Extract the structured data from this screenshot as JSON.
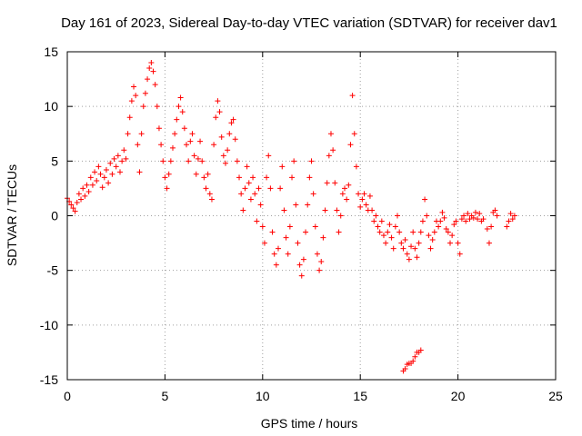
{
  "chart_data": {
    "type": "scatter",
    "title": "Day 161 of 2023, Sidereal Day-to-day VTEC variation (SDTVAR) for receiver dav1",
    "xlabel": "GPS time / hours",
    "ylabel": "SDTVAR / TECUs",
    "xlim": [
      0,
      25
    ],
    "ylim": [
      -15,
      15
    ],
    "x_ticks": [
      0,
      5,
      10,
      15,
      20,
      25
    ],
    "y_ticks": [
      -15,
      -10,
      -5,
      0,
      5,
      10,
      15
    ],
    "grid": true,
    "marker": "+",
    "series": [
      {
        "name": "SDTVAR",
        "color": "#ff0000",
        "points": [
          [
            0.0,
            1.6
          ],
          [
            0.1,
            1.3
          ],
          [
            0.2,
            1.0
          ],
          [
            0.3,
            0.7
          ],
          [
            0.4,
            0.4
          ],
          [
            0.5,
            1.2
          ],
          [
            0.6,
            2.0
          ],
          [
            0.7,
            1.5
          ],
          [
            0.8,
            2.5
          ],
          [
            0.9,
            1.8
          ],
          [
            1.0,
            2.8
          ],
          [
            1.1,
            2.2
          ],
          [
            1.2,
            3.5
          ],
          [
            1.3,
            2.8
          ],
          [
            1.4,
            4.0
          ],
          [
            1.5,
            3.2
          ],
          [
            1.6,
            4.5
          ],
          [
            1.7,
            3.8
          ],
          [
            1.8,
            2.6
          ],
          [
            1.9,
            3.5
          ],
          [
            2.0,
            4.2
          ],
          [
            2.1,
            3.0
          ],
          [
            2.2,
            4.8
          ],
          [
            2.3,
            3.8
          ],
          [
            2.4,
            5.2
          ],
          [
            2.5,
            4.5
          ],
          [
            2.6,
            5.5
          ],
          [
            2.7,
            4.0
          ],
          [
            2.8,
            5.0
          ],
          [
            2.9,
            6.0
          ],
          [
            3.0,
            5.2
          ],
          [
            3.1,
            7.5
          ],
          [
            3.2,
            9.0
          ],
          [
            3.3,
            10.5
          ],
          [
            3.4,
            11.8
          ],
          [
            3.5,
            11.0
          ],
          [
            3.6,
            6.5
          ],
          [
            3.7,
            4.0
          ],
          [
            3.8,
            7.5
          ],
          [
            3.9,
            10.0
          ],
          [
            4.0,
            11.2
          ],
          [
            4.1,
            12.5
          ],
          [
            4.2,
            13.5
          ],
          [
            4.3,
            14.0
          ],
          [
            4.4,
            13.2
          ],
          [
            4.5,
            12.0
          ],
          [
            4.6,
            10.0
          ],
          [
            4.7,
            8.0
          ],
          [
            4.8,
            6.5
          ],
          [
            4.9,
            5.0
          ],
          [
            5.0,
            3.5
          ],
          [
            5.1,
            2.5
          ],
          [
            5.2,
            3.8
          ],
          [
            5.3,
            5.0
          ],
          [
            5.4,
            6.2
          ],
          [
            5.5,
            7.5
          ],
          [
            5.6,
            8.8
          ],
          [
            5.7,
            10.0
          ],
          [
            5.8,
            10.8
          ],
          [
            5.9,
            9.5
          ],
          [
            6.0,
            8.0
          ],
          [
            6.1,
            6.5
          ],
          [
            6.2,
            5.0
          ],
          [
            6.3,
            6.8
          ],
          [
            6.4,
            7.5
          ],
          [
            6.5,
            5.5
          ],
          [
            6.6,
            3.8
          ],
          [
            6.7,
            5.2
          ],
          [
            6.8,
            6.8
          ],
          [
            6.9,
            5.0
          ],
          [
            7.0,
            3.5
          ],
          [
            7.1,
            2.5
          ],
          [
            7.2,
            3.8
          ],
          [
            7.3,
            2.0
          ],
          [
            7.4,
            1.5
          ],
          [
            7.5,
            6.5
          ],
          [
            7.6,
            9.0
          ],
          [
            7.7,
            10.5
          ],
          [
            7.8,
            9.5
          ],
          [
            7.9,
            7.2
          ],
          [
            8.0,
            5.5
          ],
          [
            8.1,
            4.8
          ],
          [
            8.2,
            6.0
          ],
          [
            8.3,
            7.5
          ],
          [
            8.4,
            8.5
          ],
          [
            8.5,
            8.8
          ],
          [
            8.6,
            7.0
          ],
          [
            8.7,
            5.0
          ],
          [
            8.8,
            3.5
          ],
          [
            8.9,
            2.0
          ],
          [
            9.0,
            0.5
          ],
          [
            9.1,
            2.5
          ],
          [
            9.2,
            4.5
          ],
          [
            9.3,
            3.0
          ],
          [
            9.4,
            1.5
          ],
          [
            9.5,
            3.5
          ],
          [
            9.6,
            2.0
          ],
          [
            9.7,
            -0.5
          ],
          [
            9.8,
            2.5
          ],
          [
            9.9,
            1.0
          ],
          [
            10.0,
            -1.0
          ],
          [
            10.1,
            -2.5
          ],
          [
            10.2,
            3.5
          ],
          [
            10.3,
            5.5
          ],
          [
            10.4,
            2.5
          ],
          [
            10.5,
            -1.5
          ],
          [
            10.6,
            -3.5
          ],
          [
            10.7,
            -4.5
          ],
          [
            10.8,
            -3.0
          ],
          [
            10.9,
            2.5
          ],
          [
            11.0,
            4.5
          ],
          [
            11.1,
            0.5
          ],
          [
            11.2,
            -2.0
          ],
          [
            11.3,
            -3.5
          ],
          [
            11.4,
            -1.0
          ],
          [
            11.5,
            3.5
          ],
          [
            11.6,
            5.0
          ],
          [
            11.7,
            1.0
          ],
          [
            11.8,
            -2.5
          ],
          [
            11.9,
            -4.5
          ],
          [
            12.0,
            -5.5
          ],
          [
            12.1,
            -4.0
          ],
          [
            12.2,
            -1.5
          ],
          [
            12.3,
            1.0
          ],
          [
            12.4,
            3.5
          ],
          [
            12.5,
            5.0
          ],
          [
            12.6,
            2.0
          ],
          [
            12.7,
            -1.0
          ],
          [
            12.8,
            -3.5
          ],
          [
            12.9,
            -5.0
          ],
          [
            13.0,
            -4.2
          ],
          [
            13.1,
            -2.0
          ],
          [
            13.2,
            0.5
          ],
          [
            13.3,
            3.0
          ],
          [
            13.4,
            5.5
          ],
          [
            13.5,
            7.5
          ],
          [
            13.6,
            6.0
          ],
          [
            13.7,
            3.0
          ],
          [
            13.8,
            0.5
          ],
          [
            13.9,
            -1.5
          ],
          [
            14.0,
            0.0
          ],
          [
            14.1,
            2.0
          ],
          [
            14.2,
            2.5
          ],
          [
            14.3,
            1.5
          ],
          [
            14.4,
            2.8
          ],
          [
            14.5,
            6.5
          ],
          [
            14.6,
            11.0
          ],
          [
            14.7,
            7.5
          ],
          [
            14.8,
            4.5
          ],
          [
            14.9,
            2.0
          ],
          [
            15.0,
            0.8
          ],
          [
            15.1,
            1.5
          ],
          [
            15.2,
            2.0
          ],
          [
            15.3,
            1.0
          ],
          [
            15.4,
            0.5
          ],
          [
            15.5,
            1.8
          ],
          [
            15.6,
            0.5
          ],
          [
            15.7,
            -0.5
          ],
          [
            15.8,
            0.0
          ],
          [
            15.9,
            -1.0
          ],
          [
            16.0,
            -1.5
          ],
          [
            16.1,
            -0.5
          ],
          [
            16.2,
            -1.8
          ],
          [
            16.3,
            -2.5
          ],
          [
            16.4,
            -1.5
          ],
          [
            16.5,
            -0.8
          ],
          [
            16.6,
            -2.0
          ],
          [
            16.7,
            -3.0
          ],
          [
            16.8,
            -1.0
          ],
          [
            16.9,
            0.0
          ],
          [
            17.0,
            -1.5
          ],
          [
            17.1,
            -2.5
          ],
          [
            17.2,
            -3.0
          ],
          [
            17.3,
            -2.2
          ],
          [
            17.4,
            -3.5
          ],
          [
            17.5,
            -4.0
          ],
          [
            17.6,
            -2.8
          ],
          [
            17.7,
            -1.5
          ],
          [
            17.8,
            -3.0
          ],
          [
            17.9,
            -3.8
          ],
          [
            18.0,
            -2.5
          ],
          [
            18.1,
            -1.5
          ],
          [
            18.2,
            -0.5
          ],
          [
            18.3,
            1.5
          ],
          [
            18.4,
            0.0
          ],
          [
            18.5,
            -1.8
          ],
          [
            18.6,
            -3.0
          ],
          [
            18.7,
            -2.2
          ],
          [
            18.8,
            -1.5
          ],
          [
            18.9,
            -0.5
          ],
          [
            19.0,
            -1.0
          ],
          [
            19.1,
            -0.5
          ],
          [
            19.2,
            0.3
          ],
          [
            19.3,
            -0.2
          ],
          [
            19.4,
            -1.2
          ],
          [
            19.5,
            -1.5
          ],
          [
            19.6,
            -2.5
          ],
          [
            19.7,
            -1.8
          ],
          [
            19.8,
            -0.8
          ],
          [
            19.9,
            -0.5
          ],
          [
            20.0,
            -2.5
          ],
          [
            20.1,
            -3.5
          ],
          [
            20.2,
            -0.3
          ],
          [
            20.3,
            0.0
          ],
          [
            20.4,
            -0.5
          ],
          [
            20.5,
            0.2
          ],
          [
            20.6,
            -0.3
          ],
          [
            20.7,
            0.0
          ],
          [
            20.8,
            -0.2
          ],
          [
            20.9,
            0.3
          ],
          [
            21.0,
            -0.3
          ],
          [
            21.1,
            0.2
          ],
          [
            21.2,
            -0.5
          ],
          [
            21.3,
            -0.3
          ],
          [
            21.5,
            -1.2
          ],
          [
            21.6,
            -2.5
          ],
          [
            21.7,
            -1.0
          ],
          [
            21.8,
            0.3
          ],
          [
            21.9,
            0.5
          ],
          [
            22.0,
            0.0
          ],
          [
            22.5,
            -1.0
          ],
          [
            22.6,
            -0.5
          ],
          [
            22.7,
            0.2
          ],
          [
            22.8,
            -0.3
          ],
          [
            22.9,
            0.0
          ],
          [
            17.2,
            -14.2
          ],
          [
            17.3,
            -14.0
          ],
          [
            17.4,
            -13.6
          ],
          [
            17.5,
            -13.5
          ],
          [
            17.6,
            -13.5
          ],
          [
            17.7,
            -13.3
          ],
          [
            17.8,
            -12.9
          ],
          [
            17.9,
            -12.5
          ],
          [
            18.0,
            -12.5
          ],
          [
            18.1,
            -12.3
          ]
        ]
      }
    ]
  }
}
